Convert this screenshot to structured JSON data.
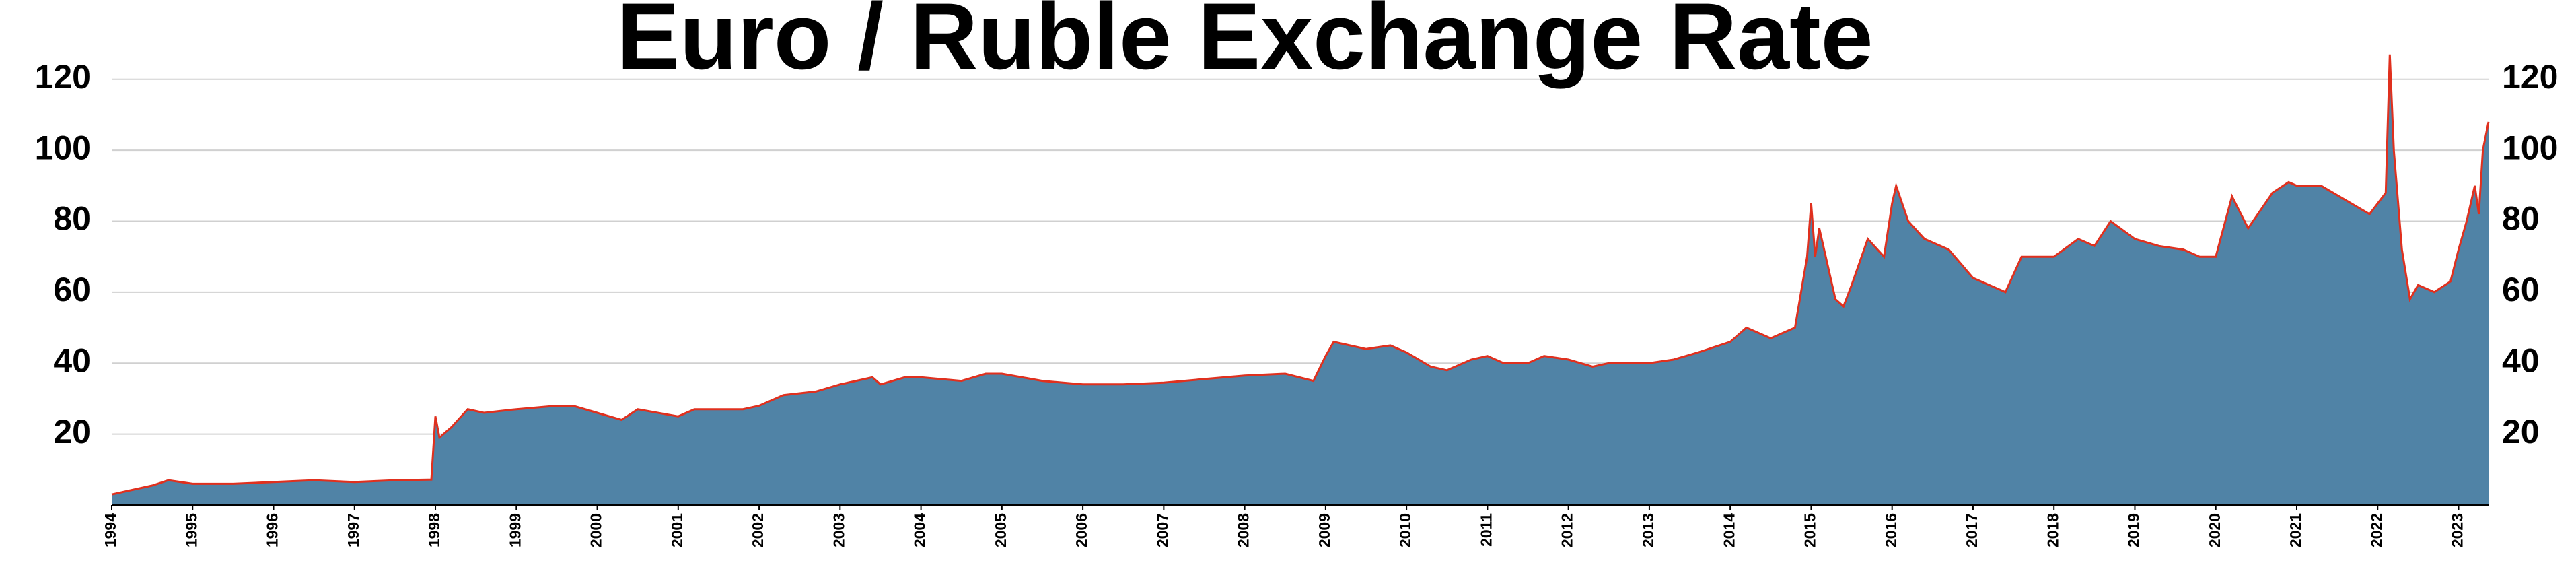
{
  "chart_data": {
    "type": "area",
    "title": "Euro / Ruble Exchange Rate",
    "x": [
      1994.0,
      1994.2,
      1994.5,
      1994.7,
      1995.0,
      1995.5,
      1996.0,
      1996.5,
      1997.0,
      1997.5,
      1997.95,
      1998.0,
      1998.05,
      1998.2,
      1998.4,
      1998.6,
      1999.0,
      1999.5,
      1999.7,
      2000.0,
      2000.3,
      2000.5,
      2001.0,
      2001.2,
      2001.8,
      2002.0,
      2002.3,
      2002.7,
      2003.0,
      2003.4,
      2003.5,
      2003.8,
      2004.0,
      2004.5,
      2004.8,
      2005.0,
      2005.5,
      2006.0,
      2006.5,
      2007.0,
      2007.5,
      2008.0,
      2008.5,
      2008.85,
      2009.0,
      2009.1,
      2009.5,
      2009.8,
      2010.0,
      2010.3,
      2010.5,
      2010.8,
      2011.0,
      2011.2,
      2011.5,
      2011.7,
      2012.0,
      2012.3,
      2012.5,
      2013.0,
      2013.3,
      2013.6,
      2014.0,
      2014.2,
      2014.5,
      2014.8,
      2014.95,
      2015.0,
      2015.05,
      2015.1,
      2015.3,
      2015.4,
      2015.5,
      2015.7,
      2015.9,
      2016.0,
      2016.05,
      2016.2,
      2016.4,
      2016.7,
      2017.0,
      2017.2,
      2017.4,
      2017.6,
      2018.0,
      2018.3,
      2018.5,
      2018.7,
      2019.0,
      2019.3,
      2019.6,
      2019.8,
      2020.0,
      2020.2,
      2020.4,
      2020.7,
      2020.9,
      2021.0,
      2021.3,
      2021.6,
      2021.9,
      2022.1,
      2022.15,
      2022.2,
      2022.3,
      2022.4,
      2022.5,
      2022.7,
      2022.9,
      2023.0,
      2023.1,
      2023.2,
      2023.25,
      2023.3,
      2023.37
    ],
    "values": [
      3,
      4,
      5.5,
      7,
      6,
      6,
      6.5,
      7,
      6.5,
      7,
      7.2,
      25,
      19,
      22,
      27,
      26,
      27,
      28,
      28,
      26,
      24,
      27,
      25,
      27,
      27,
      28,
      31,
      32,
      34,
      36,
      34,
      36,
      36,
      35,
      37,
      37,
      35,
      34,
      34,
      34.5,
      35.5,
      36.5,
      37,
      35,
      42,
      46,
      44,
      45,
      43,
      39,
      38,
      41,
      42,
      40,
      40,
      42,
      41,
      39,
      40,
      40,
      41,
      43,
      46,
      50,
      47,
      50,
      70,
      85,
      70,
      78,
      58,
      56,
      62,
      75,
      70,
      85,
      90,
      80,
      75,
      72,
      64,
      62,
      60,
      70,
      70,
      75,
      73,
      80,
      75,
      73,
      72,
      70,
      70,
      87,
      78,
      88,
      91,
      90,
      90,
      86,
      82,
      88,
      127,
      100,
      72,
      58,
      62,
      60,
      63,
      72,
      80,
      90,
      82,
      100,
      108
    ],
    "fill_color": "#5083a6",
    "line_color": "#e0301e",
    "xlim": [
      1994.0,
      2023.37
    ],
    "xticks": [
      1994,
      1995,
      1996,
      1997,
      1998,
      1999,
      2000,
      2001,
      2002,
      2003,
      2004,
      2005,
      2006,
      2007,
      2008,
      2009,
      2010,
      2011,
      2012,
      2013,
      2014,
      2015,
      2016,
      2017,
      2018,
      2019,
      2020,
      2021,
      2022,
      2023
    ],
    "ylim": [
      0,
      130
    ],
    "yticks": [
      20,
      40,
      60,
      80,
      100,
      120
    ],
    "grid": true
  }
}
